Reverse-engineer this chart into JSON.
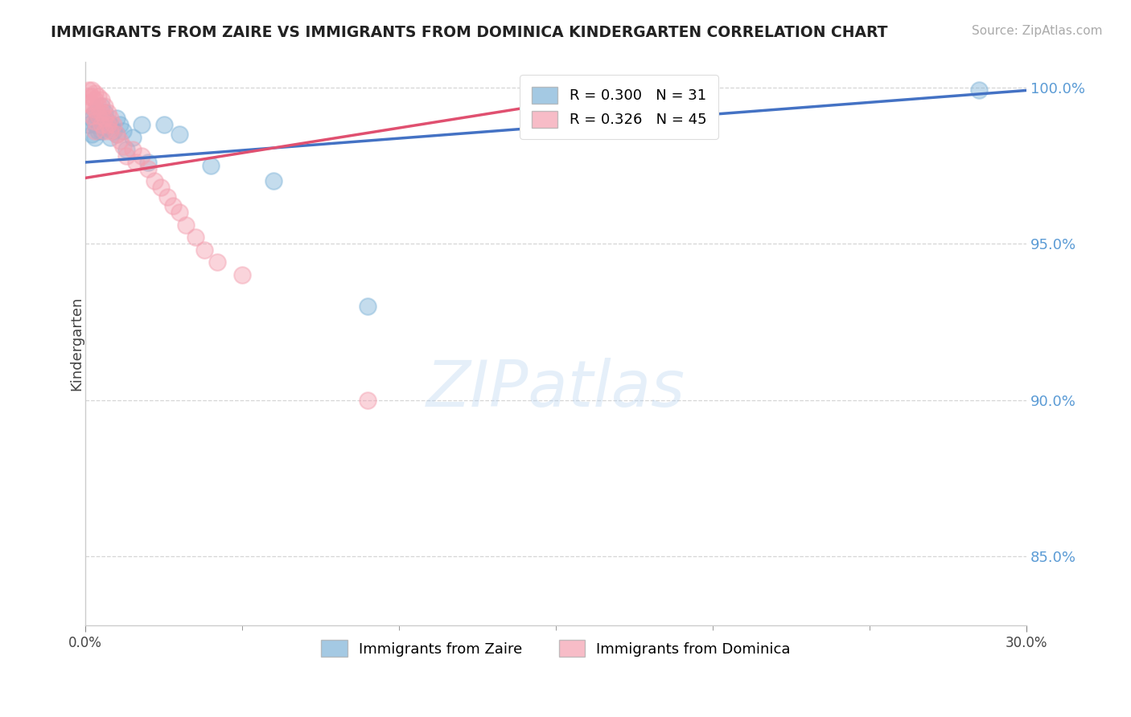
{
  "title": "IMMIGRANTS FROM ZAIRE VS IMMIGRANTS FROM DOMINICA KINDERGARTEN CORRELATION CHART",
  "source": "Source: ZipAtlas.com",
  "ylabel": "Kindergarten",
  "xlim": [
    0.0,
    0.3
  ],
  "ylim": [
    0.828,
    1.008
  ],
  "yticks": [
    0.85,
    0.9,
    0.95,
    1.0
  ],
  "ytick_labels": [
    "85.0%",
    "90.0%",
    "95.0%",
    "100.0%"
  ],
  "xtick_positions": [
    0.0,
    0.3
  ],
  "xtick_labels": [
    "0.0%",
    "30.0%"
  ],
  "legend_blue_label": "R = 0.300   N = 31",
  "legend_pink_label": "R = 0.326   N = 45",
  "legend_blue_label2": "Immigrants from Zaire",
  "legend_pink_label2": "Immigrants from Dominica",
  "blue_color": "#7EB3D8",
  "pink_color": "#F4A0B0",
  "blue_line_color": "#4472C4",
  "pink_line_color": "#E05070",
  "axis_color": "#5B9BD5",
  "watermark_text": "ZIPatlas",
  "blue_x": [
    0.001,
    0.002,
    0.002,
    0.003,
    0.003,
    0.003,
    0.004,
    0.004,
    0.005,
    0.005,
    0.005,
    0.006,
    0.006,
    0.007,
    0.008,
    0.008,
    0.009,
    0.01,
    0.01,
    0.011,
    0.012,
    0.013,
    0.015,
    0.018,
    0.02,
    0.025,
    0.03,
    0.04,
    0.06,
    0.09,
    0.285
  ],
  "blue_y": [
    0.988,
    0.99,
    0.985,
    0.992,
    0.988,
    0.984,
    0.99,
    0.986,
    0.994,
    0.99,
    0.986,
    0.992,
    0.987,
    0.989,
    0.988,
    0.984,
    0.986,
    0.99,
    0.985,
    0.988,
    0.986,
    0.98,
    0.984,
    0.988,
    0.976,
    0.988,
    0.985,
    0.975,
    0.97,
    0.93,
    0.999
  ],
  "pink_x": [
    0.001,
    0.001,
    0.001,
    0.002,
    0.002,
    0.002,
    0.002,
    0.003,
    0.003,
    0.003,
    0.003,
    0.003,
    0.004,
    0.004,
    0.004,
    0.005,
    0.005,
    0.005,
    0.006,
    0.006,
    0.006,
    0.007,
    0.007,
    0.008,
    0.008,
    0.009,
    0.01,
    0.011,
    0.012,
    0.013,
    0.015,
    0.016,
    0.018,
    0.02,
    0.022,
    0.024,
    0.026,
    0.028,
    0.03,
    0.032,
    0.035,
    0.038,
    0.042,
    0.05,
    0.09
  ],
  "pink_y": [
    0.999,
    0.997,
    0.995,
    0.999,
    0.997,
    0.994,
    0.991,
    0.998,
    0.996,
    0.993,
    0.989,
    0.986,
    0.997,
    0.994,
    0.991,
    0.996,
    0.992,
    0.988,
    0.994,
    0.99,
    0.986,
    0.992,
    0.988,
    0.99,
    0.986,
    0.988,
    0.985,
    0.983,
    0.981,
    0.978,
    0.98,
    0.976,
    0.978,
    0.974,
    0.97,
    0.968,
    0.965,
    0.962,
    0.96,
    0.956,
    0.952,
    0.948,
    0.944,
    0.94,
    0.9
  ],
  "blue_trend_x": [
    0.0,
    0.3
  ],
  "blue_trend_y": [
    0.976,
    0.999
  ],
  "pink_trend_x": [
    0.0,
    0.175
  ],
  "pink_trend_y": [
    0.971,
    0.999
  ]
}
